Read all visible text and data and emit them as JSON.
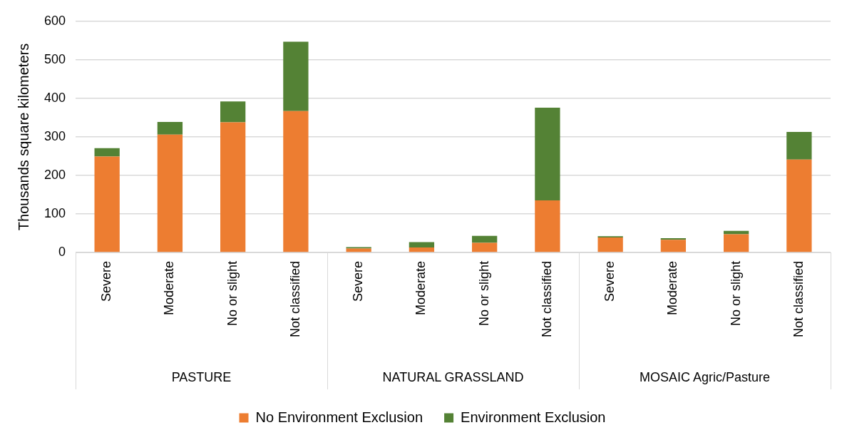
{
  "chart_data": {
    "type": "bar",
    "stacked": true,
    "ylabel": "Thousands square kilometers",
    "categories": [
      "Severe",
      "Moderate",
      "No or slight",
      "Not classified",
      "Severe",
      "Moderate",
      "No or slight",
      "Not classified",
      "Severe",
      "Moderate",
      "No or slight",
      "Not classified"
    ],
    "series": [
      {
        "name": "No Environment Exclusion",
        "color": "#ed7d31",
        "values": [
          249,
          306,
          338,
          367,
          10,
          13,
          25,
          135,
          39,
          33,
          47,
          241
        ]
      },
      {
        "name": "Environment Exclusion",
        "color": "#548235",
        "values": [
          22,
          33,
          54,
          180,
          4,
          14,
          18,
          241,
          3,
          4,
          9,
          72
        ]
      }
    ],
    "ylim": [
      0,
      600
    ],
    "yticks": [
      0,
      100,
      200,
      300,
      400,
      500,
      600
    ],
    "grid": "y",
    "legend": "bottom",
    "annotations": [
      "PASTURE",
      "NATURAL GRASSLAND",
      "MOSAIC Agric/Pasture"
    ]
  }
}
